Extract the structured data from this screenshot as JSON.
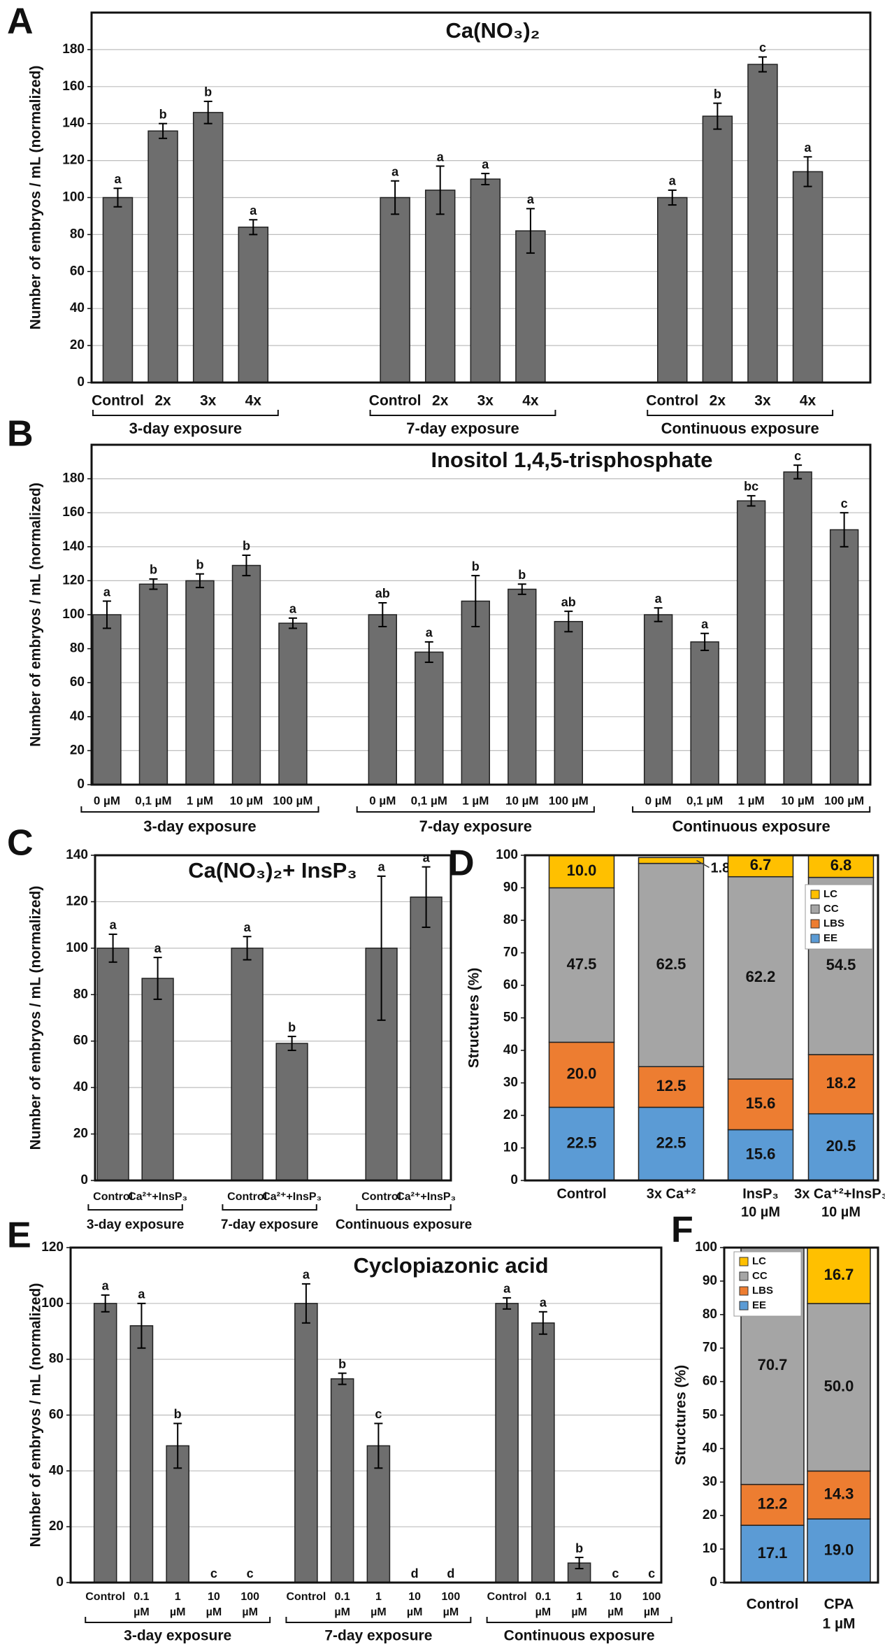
{
  "chart_data": [
    {
      "type": "grouped_bar",
      "panel_label": "A",
      "title": "Ca(NO₃)₂",
      "y_label": "Number of embryos / mL (normalized)",
      "ylim": [
        0,
        200
      ],
      "yticks": [
        0,
        20,
        40,
        60,
        80,
        100,
        120,
        140,
        160,
        180
      ],
      "grid": true,
      "color": "#6e6e6e",
      "groups": [
        {
          "name": "3-day exposure",
          "categories": [
            "Control",
            "2x",
            "3x",
            "4x"
          ],
          "values": [
            100,
            136,
            146,
            84
          ],
          "errors": [
            5,
            4,
            6,
            4
          ],
          "letters": [
            "a",
            "b",
            "b",
            "a"
          ]
        },
        {
          "name": "7-day exposure",
          "categories": [
            "Control",
            "2x",
            "3x",
            "4x"
          ],
          "values": [
            100,
            104,
            110,
            82
          ],
          "errors": [
            9,
            13,
            3,
            12
          ],
          "letters": [
            "a",
            "a",
            "a",
            "a"
          ]
        },
        {
          "name": "Continuous exposure",
          "categories": [
            "Control",
            "2x",
            "3x",
            "4x"
          ],
          "values": [
            100,
            144,
            172,
            114
          ],
          "errors": [
            4,
            7,
            4,
            8
          ],
          "letters": [
            "a",
            "b",
            "c",
            "a"
          ]
        }
      ]
    },
    {
      "type": "grouped_bar",
      "panel_label": "B",
      "title": "Inositol 1,4,5-trisphosphate",
      "y_label": "Number of embryos / mL (normalized)",
      "ylim": [
        0,
        200
      ],
      "yticks": [
        0,
        20,
        40,
        60,
        80,
        100,
        120,
        140,
        160,
        180
      ],
      "grid": true,
      "color": "#6e6e6e",
      "groups": [
        {
          "name": "3-day exposure",
          "categories": [
            "0 µM",
            "0,1 µM",
            "1 µM",
            "10 µM",
            "100 µM"
          ],
          "values": [
            100,
            118,
            120,
            129,
            95
          ],
          "errors": [
            8,
            3,
            4,
            6,
            3
          ],
          "letters": [
            "a",
            "b",
            "b",
            "b",
            "a"
          ]
        },
        {
          "name": "7-day exposure",
          "categories": [
            "0 µM",
            "0,1 µM",
            "1 µM",
            "10 µM",
            "100 µM"
          ],
          "values": [
            100,
            78,
            108,
            115,
            96
          ],
          "errors": [
            7,
            6,
            15,
            3,
            6
          ],
          "letters": [
            "ab",
            "a",
            "b",
            "b",
            "ab"
          ]
        },
        {
          "name": "Continuous exposure",
          "categories": [
            "0 µM",
            "0,1 µM",
            "1 µM",
            "10 µM",
            "100 µM"
          ],
          "values": [
            100,
            84,
            167,
            184,
            150
          ],
          "errors": [
            4,
            5,
            3,
            4,
            10
          ],
          "letters": [
            "a",
            "a",
            "bc",
            "c",
            "c"
          ]
        }
      ]
    },
    {
      "type": "grouped_bar",
      "panel_label": "C",
      "title": "Ca(NO₃)₂+ InsP₃",
      "y_label": "Number of embryos / mL (normalized)",
      "ylim": [
        0,
        140
      ],
      "yticks": [
        0,
        20,
        40,
        60,
        80,
        100,
        120,
        140
      ],
      "grid": true,
      "color": "#6e6e6e",
      "groups": [
        {
          "name": "3-day exposure",
          "categories": [
            "Control",
            "Ca²⁺+InsP₃"
          ],
          "values": [
            100,
            87
          ],
          "errors": [
            6,
            9
          ],
          "letters": [
            "a",
            "a"
          ]
        },
        {
          "name": "7-day exposure",
          "categories": [
            "Control",
            "Ca²⁺+InsP₃"
          ],
          "values": [
            100,
            59
          ],
          "errors": [
            5,
            3
          ],
          "letters": [
            "a",
            "b"
          ]
        },
        {
          "name": "Continuous exposure",
          "categories": [
            "Control",
            "Ca²⁺+InsP₃"
          ],
          "values": [
            100,
            122
          ],
          "errors": [
            31,
            13
          ],
          "letters": [
            "a",
            "a"
          ]
        }
      ]
    },
    {
      "type": "stacked_bar",
      "panel_label": "D",
      "y_label": "Structures (%)",
      "ylim": [
        0,
        100
      ],
      "yticks": [
        0,
        10,
        20,
        30,
        40,
        50,
        60,
        70,
        80,
        90,
        100
      ],
      "grid": false,
      "legend": "upper right",
      "categories": [
        [
          "Control"
        ],
        [
          "3x Ca⁺²"
        ],
        [
          "InsP₃",
          "10 µM"
        ],
        [
          "3x Ca⁺²+InsP₃",
          "10 µM"
        ]
      ],
      "series": [
        {
          "name": "EE",
          "color": "#5b9bd5",
          "values": [
            22.5,
            22.5,
            15.6,
            20.5
          ],
          "value_labels": [
            "22.5",
            "22.5",
            "15.6",
            "20.5"
          ]
        },
        {
          "name": "LBS",
          "color": "#ed7d31",
          "values": [
            20.0,
            12.5,
            15.6,
            18.2
          ],
          "value_labels": [
            "20.0",
            "12.5",
            "15.6",
            "18.2"
          ]
        },
        {
          "name": "CC",
          "color": "#a5a5a5",
          "values": [
            47.5,
            62.5,
            62.2,
            54.5
          ],
          "value_labels": [
            "47.5",
            "62.5",
            "62.2",
            "54.5"
          ]
        },
        {
          "name": "LC",
          "color": "#ffc000",
          "values": [
            10.0,
            1.8,
            6.7,
            6.8
          ],
          "value_labels": [
            "10.0",
            "1.8",
            "6.7",
            "6.8"
          ]
        }
      ]
    },
    {
      "type": "grouped_bar",
      "panel_label": "E",
      "title": "Cyclopiazonic acid",
      "y_label": "Number of embryos / mL (normalized)",
      "ylim": [
        0,
        120
      ],
      "yticks": [
        0,
        20,
        40,
        60,
        80,
        100,
        120
      ],
      "grid": true,
      "color": "#6e6e6e",
      "groups": [
        {
          "name": "3-day exposure",
          "categories": [
            [
              "Control"
            ],
            [
              "0.1",
              "µM"
            ],
            [
              "1",
              "µM"
            ],
            [
              "10",
              "µM"
            ],
            [
              "100",
              "µM"
            ]
          ],
          "values": [
            100,
            92,
            49,
            0,
            0
          ],
          "errors": [
            3,
            8,
            8,
            null,
            null
          ],
          "letters": [
            "a",
            "a",
            "b",
            "c",
            "c"
          ]
        },
        {
          "name": "7-day exposure",
          "categories": [
            [
              "Control"
            ],
            [
              "0.1",
              "µM"
            ],
            [
              "1",
              "µM"
            ],
            [
              "10",
              "µM"
            ],
            [
              "100",
              "µM"
            ]
          ],
          "values": [
            100,
            73,
            49,
            0,
            0
          ],
          "errors": [
            7,
            2,
            8,
            null,
            null
          ],
          "letters": [
            "a",
            "b",
            "c",
            "d",
            "d"
          ]
        },
        {
          "name": "Continuous exposure",
          "categories": [
            [
              "Control"
            ],
            [
              "0.1",
              "µM"
            ],
            [
              "1",
              "µM"
            ],
            [
              "10",
              "µM"
            ],
            [
              "100",
              "µM"
            ]
          ],
          "values": [
            100,
            93,
            7,
            0,
            0
          ],
          "errors": [
            2,
            4,
            2,
            null,
            null
          ],
          "letters": [
            "a",
            "a",
            "b",
            "c",
            "c"
          ]
        }
      ]
    },
    {
      "type": "stacked_bar",
      "panel_label": "F",
      "y_label": "Structures (%)",
      "ylim": [
        0,
        100
      ],
      "yticks": [
        0,
        10,
        20,
        30,
        40,
        50,
        60,
        70,
        80,
        90,
        100
      ],
      "grid": false,
      "legend": "upper left",
      "categories": [
        [
          "Control"
        ],
        [
          "CPA",
          "1 µM"
        ]
      ],
      "series": [
        {
          "name": "EE",
          "color": "#5b9bd5",
          "values": [
            17.1,
            19.0
          ],
          "value_labels": [
            "17.1",
            "19.0"
          ]
        },
        {
          "name": "LBS",
          "color": "#ed7d31",
          "values": [
            12.2,
            14.3
          ],
          "value_labels": [
            "12.2",
            "14.3"
          ]
        },
        {
          "name": "CC",
          "color": "#a5a5a5",
          "values": [
            70.7,
            50.0
          ],
          "value_labels": [
            "70.7",
            "50.0"
          ]
        },
        {
          "name": "LC",
          "color": "#ffc000",
          "values": [
            null,
            16.7
          ],
          "value_labels": [
            null,
            "16.7"
          ]
        }
      ]
    }
  ]
}
